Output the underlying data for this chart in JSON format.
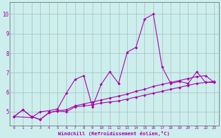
{
  "xlabel": "Windchill (Refroidissement éolien,°C)",
  "background_color": "#cceeed",
  "grid_color": "#aabbbb",
  "line_color": "#aa00aa",
  "xlim": [
    -0.5,
    23.5
  ],
  "ylim": [
    4.3,
    10.6
  ],
  "yticks": [
    5,
    6,
    7,
    8,
    9,
    10
  ],
  "xticks": [
    0,
    1,
    2,
    3,
    4,
    5,
    6,
    7,
    8,
    9,
    10,
    11,
    12,
    13,
    14,
    15,
    16,
    17,
    18,
    19,
    20,
    21,
    22,
    23
  ],
  "s1_x": [
    0,
    1,
    2,
    3,
    4,
    5,
    6,
    7,
    8,
    9,
    10,
    11,
    12,
    13,
    14,
    15,
    16,
    17,
    18,
    19,
    20,
    21,
    22,
    23
  ],
  "s1_y": [
    4.75,
    5.1,
    4.75,
    4.6,
    4.95,
    5.05,
    5.0,
    5.25,
    5.3,
    5.35,
    5.45,
    5.5,
    5.55,
    5.65,
    5.75,
    5.85,
    5.95,
    6.05,
    6.15,
    6.25,
    6.35,
    6.45,
    6.5,
    6.55
  ],
  "s2_x": [
    0,
    1,
    2,
    3,
    4,
    5,
    6,
    7,
    8,
    9,
    10,
    11,
    12,
    13,
    14,
    15,
    16,
    17,
    18,
    19,
    20,
    21,
    22,
    23
  ],
  "s2_y": [
    4.75,
    5.1,
    4.75,
    4.6,
    4.95,
    5.05,
    5.1,
    5.3,
    5.4,
    5.5,
    5.6,
    5.7,
    5.8,
    5.9,
    6.05,
    6.15,
    6.3,
    6.4,
    6.5,
    6.6,
    6.7,
    6.8,
    6.85,
    6.5
  ],
  "s3_x": [
    0,
    2,
    3,
    4,
    5,
    6,
    7,
    8,
    9,
    10,
    11,
    12,
    13,
    14,
    15,
    16,
    17,
    18,
    19,
    20,
    21,
    22,
    23
  ],
  "s3_y": [
    4.75,
    4.7,
    5.0,
    5.05,
    5.15,
    5.95,
    6.65,
    6.85,
    5.25,
    6.4,
    7.05,
    6.45,
    8.05,
    8.3,
    9.75,
    10.0,
    7.3,
    6.45,
    6.55,
    6.45,
    7.05,
    6.5,
    6.5
  ]
}
